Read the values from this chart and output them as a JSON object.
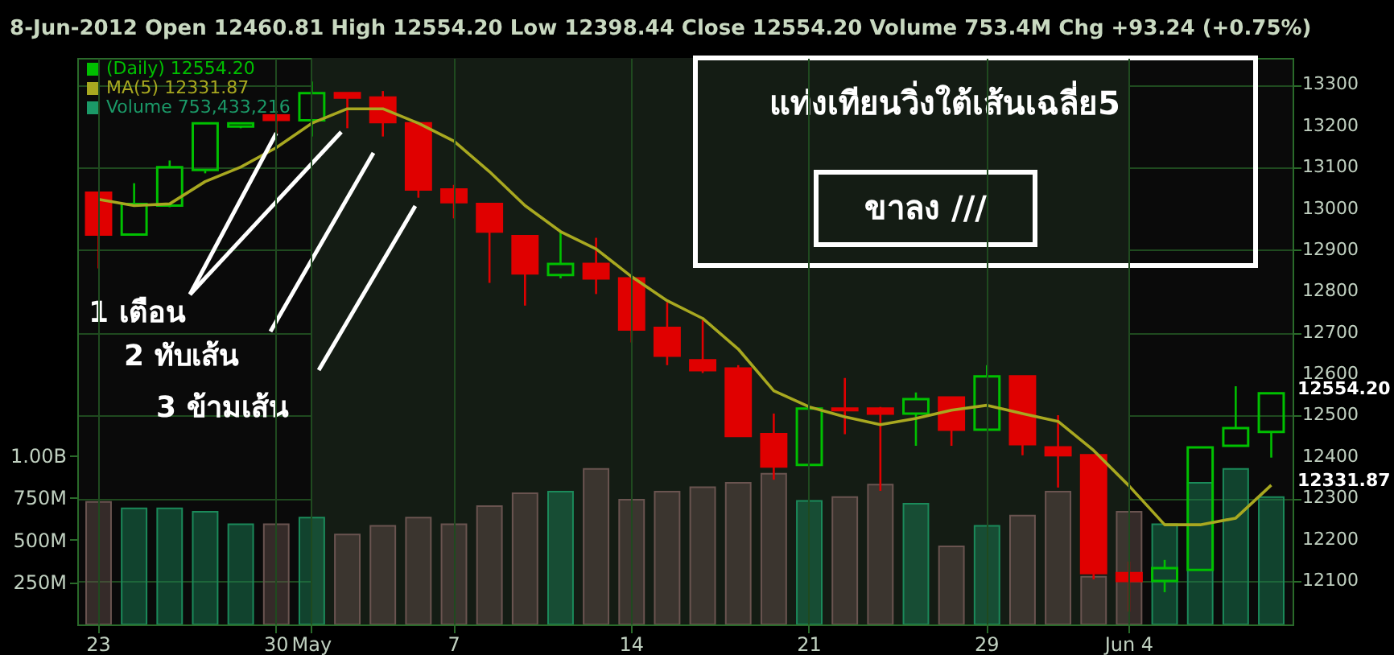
{
  "chart_data": {
    "type": "candlestick",
    "title": "8-Jun-2012   Open 12460.81  High 12554.20  Low 12398.44  Close 12554.20  Volume 753.4M  Chg +93.24 (+0.75%)",
    "categories": [
      "23",
      null,
      null,
      null,
      null,
      "30",
      "May",
      null,
      null,
      null,
      "7",
      null,
      null,
      null,
      null,
      "14",
      null,
      null,
      null,
      null,
      "21",
      null,
      null,
      null,
      null,
      "29",
      null,
      null,
      null,
      "Jun 4",
      null,
      null,
      null,
      null
    ],
    "series": [
      {
        "type": "candlestick",
        "name": "(Daily) 12554.20",
        "color": "#00c000",
        "ohlc": [
          [
            13039,
            13039,
            12856,
            12938
          ],
          [
            12938,
            13062,
            12938,
            13012
          ],
          [
            13008,
            13117,
            13004,
            13101
          ],
          [
            13094,
            13207,
            13086,
            13207
          ],
          [
            13199,
            13207,
            13195,
            13207
          ],
          [
            13226,
            13230,
            13183,
            13215
          ],
          [
            13214,
            13308,
            13175,
            13280
          ],
          [
            13280,
            13280,
            13195,
            13269
          ],
          [
            13269,
            13285,
            13175,
            13210
          ],
          [
            13207,
            13207,
            13027,
            13047
          ],
          [
            13047,
            13058,
            12977,
            13016
          ],
          [
            13012,
            13012,
            12821,
            12945
          ],
          [
            12934,
            12934,
            12766,
            12844
          ],
          [
            12840,
            12945,
            12832,
            12867
          ],
          [
            12867,
            12930,
            12794,
            12832
          ],
          [
            12832,
            12832,
            12677,
            12708
          ],
          [
            12712,
            12774,
            12622,
            12645
          ],
          [
            12634,
            12731,
            12603,
            12610
          ],
          [
            12614,
            12622,
            12451,
            12451
          ],
          [
            12455,
            12505,
            12345,
            12377
          ],
          [
            12381,
            12517,
            12381,
            12517
          ],
          [
            12517,
            12591,
            12455,
            12513
          ],
          [
            12517,
            12521,
            12318,
            12505
          ],
          [
            12505,
            12556,
            12427,
            12540
          ],
          [
            12544,
            12544,
            12427,
            12466
          ],
          [
            12466,
            12622,
            12466,
            12595
          ],
          [
            12595,
            12595,
            12404,
            12431
          ],
          [
            12423,
            12501,
            12326,
            12404
          ],
          [
            12404,
            12404,
            12104,
            12119
          ],
          [
            12119,
            12147,
            12026,
            12100
          ],
          [
            12100,
            12151,
            12073,
            12131
          ],
          [
            12127,
            12423,
            12127,
            12423
          ],
          [
            12427,
            12571,
            12427,
            12470
          ],
          [
            12460.81,
            12554.2,
            12398.44,
            12554.2
          ]
        ],
        "colors": [
          "#e00000",
          "#00c000",
          "#00c000",
          "#00c000",
          "#00c000",
          "#e00000",
          "#00c000",
          "#e00000",
          "#e00000",
          "#e00000",
          "#e00000",
          "#e00000",
          "#e00000",
          "#00c000",
          "#e00000",
          "#e00000",
          "#e00000",
          "#e00000",
          "#e00000",
          "#e00000",
          "#00c000",
          "#e00000",
          "#e00000",
          "#00c000",
          "#e00000",
          "#00c000",
          "#e00000",
          "#e00000",
          "#e00000",
          "#e00000",
          "#00c000",
          "#00c000",
          "#00c000",
          "#00c000"
        ]
      },
      {
        "type": "line",
        "name": "MA(5) 12331.87",
        "color": "#a8a820",
        "values": [
          13023,
          13008,
          13012,
          13066,
          13101,
          13148,
          13207,
          13242,
          13242,
          13207,
          13164,
          13090,
          13008,
          12945,
          12903,
          12836,
          12778,
          12735,
          12661,
          12560,
          12521,
          12497,
          12478,
          12493,
          12513,
          12525,
          12505,
          12486,
          12416,
          12330,
          12236,
          12236,
          12252,
          12331.87
        ]
      },
      {
        "type": "bar",
        "axis": "y2",
        "name": "Volume 753,433,216",
        "color": "#1b9a68",
        "values": [
          724000000,
          686000000,
          686000000,
          666000000,
          593000000,
          593000000,
          632000000,
          532000000,
          583000000,
          632000000,
          593000000,
          699000000,
          776000000,
          785000000,
          920000000,
          737000000,
          785000000,
          811000000,
          837000000,
          891000000,
          731000000,
          753000000,
          827000000,
          714000000,
          462000000,
          583000000,
          644000000,
          785000000,
          282000000,
          666000000,
          593000000,
          837000000,
          920000000,
          753433216
        ],
        "colors": [
          "#6a5450",
          "#1b8a5a",
          "#1b8a5a",
          "#1b8a5a",
          "#1b8a5a",
          "#6a5450",
          "#1b8a5a",
          "#6a5450",
          "#6a5450",
          "#6a5450",
          "#6a5450",
          "#6a5450",
          "#6a5450",
          "#1b8a5a",
          "#6a5450",
          "#6a5450",
          "#6a5450",
          "#6a5450",
          "#6a5450",
          "#6a5450",
          "#1b8a5a",
          "#6a5450",
          "#6a5450",
          "#1b8a5a",
          "#6a5450",
          "#1b8a5a",
          "#6a5450",
          "#6a5450",
          "#6a5450",
          "#6a5450",
          "#1b8a5a",
          "#1b8a5a",
          "#1b8a5a",
          "#1b8a5a"
        ]
      }
    ],
    "ylim": [
      11995,
      13365
    ],
    "yticks": [
      12100,
      12200,
      12300,
      12400,
      12500,
      12600,
      12700,
      12800,
      12900,
      13000,
      13100,
      13200,
      13300
    ],
    "y2lim": [
      0,
      3350000000
    ],
    "y2ticks": [
      {
        "value": 250000000,
        "label": "250M"
      },
      {
        "value": 500000000,
        "label": "500M"
      },
      {
        "value": 750000000,
        "label": "750M"
      },
      {
        "value": 1000000000,
        "label": "1.00B"
      }
    ],
    "bands": [
      {
        "axis": "x",
        "from": "May",
        "to": "Jun 4",
        "color": "#141c14"
      }
    ],
    "annotations": [
      "แท่งเทียนวิ่งใต้เส้นเฉลี่ย5",
      "ขาลง ///",
      {
        "text": "1 เตือน",
        "x": "30",
        "y": 13183
      },
      "2 ทับเส้น",
      "3 ข้ามเส้น",
      "12554.20",
      "12331.87"
    ],
    "grid": true,
    "legend": "top left"
  }
}
